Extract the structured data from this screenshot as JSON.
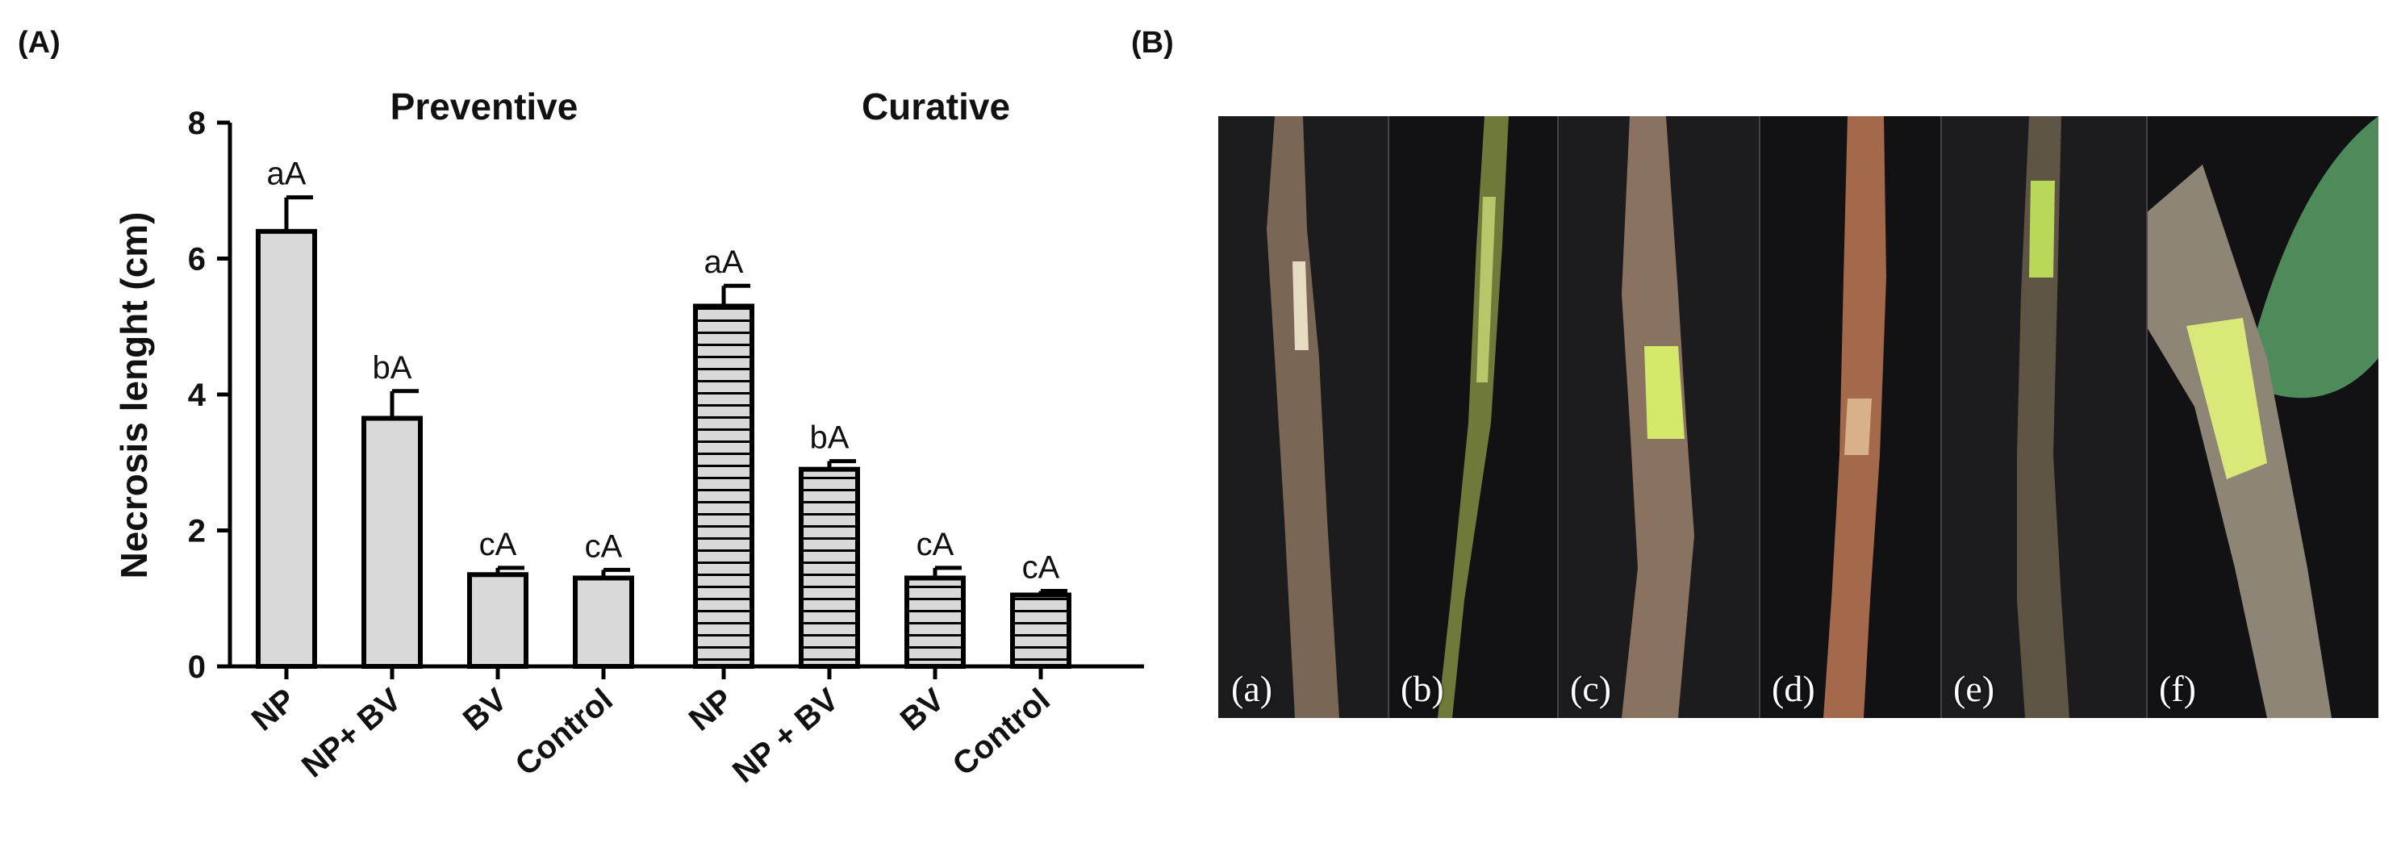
{
  "panels": {
    "a_label": "(A)",
    "b_label": "(B)"
  },
  "chart_data": {
    "type": "bar",
    "ylabel": "Necrosis lenght (cm)",
    "ylim": [
      0,
      8
    ],
    "yticks": [
      "0",
      "2",
      "4",
      "6",
      "8"
    ],
    "groups": [
      {
        "title": "Preventive",
        "pattern": "solid",
        "categories": [
          "NP",
          "NP+ BV",
          "BV",
          "Control"
        ],
        "values": [
          6.4,
          3.65,
          1.35,
          1.3
        ],
        "errors": [
          0.5,
          0.4,
          0.1,
          0.12
        ],
        "letters": [
          "aA",
          "bA",
          "cA",
          "cA"
        ]
      },
      {
        "title": "Curative",
        "pattern": "horizontal-stripes",
        "categories": [
          "NP",
          "NP + BV",
          "BV",
          "Control"
        ],
        "values": [
          5.3,
          2.9,
          1.3,
          1.05
        ],
        "errors": [
          0.3,
          0.12,
          0.15,
          0.06
        ],
        "letters": [
          "aA",
          "bA",
          "cA",
          "cA"
        ]
      }
    ],
    "colors": {
      "bar_fill": "#d9d9d9",
      "stroke": "#000000"
    }
  },
  "photos": [
    {
      "label": "(a)"
    },
    {
      "label": "(b)"
    },
    {
      "label": "(c)"
    },
    {
      "label": "(d)"
    },
    {
      "label": "(e)"
    },
    {
      "label": "(f)"
    }
  ]
}
